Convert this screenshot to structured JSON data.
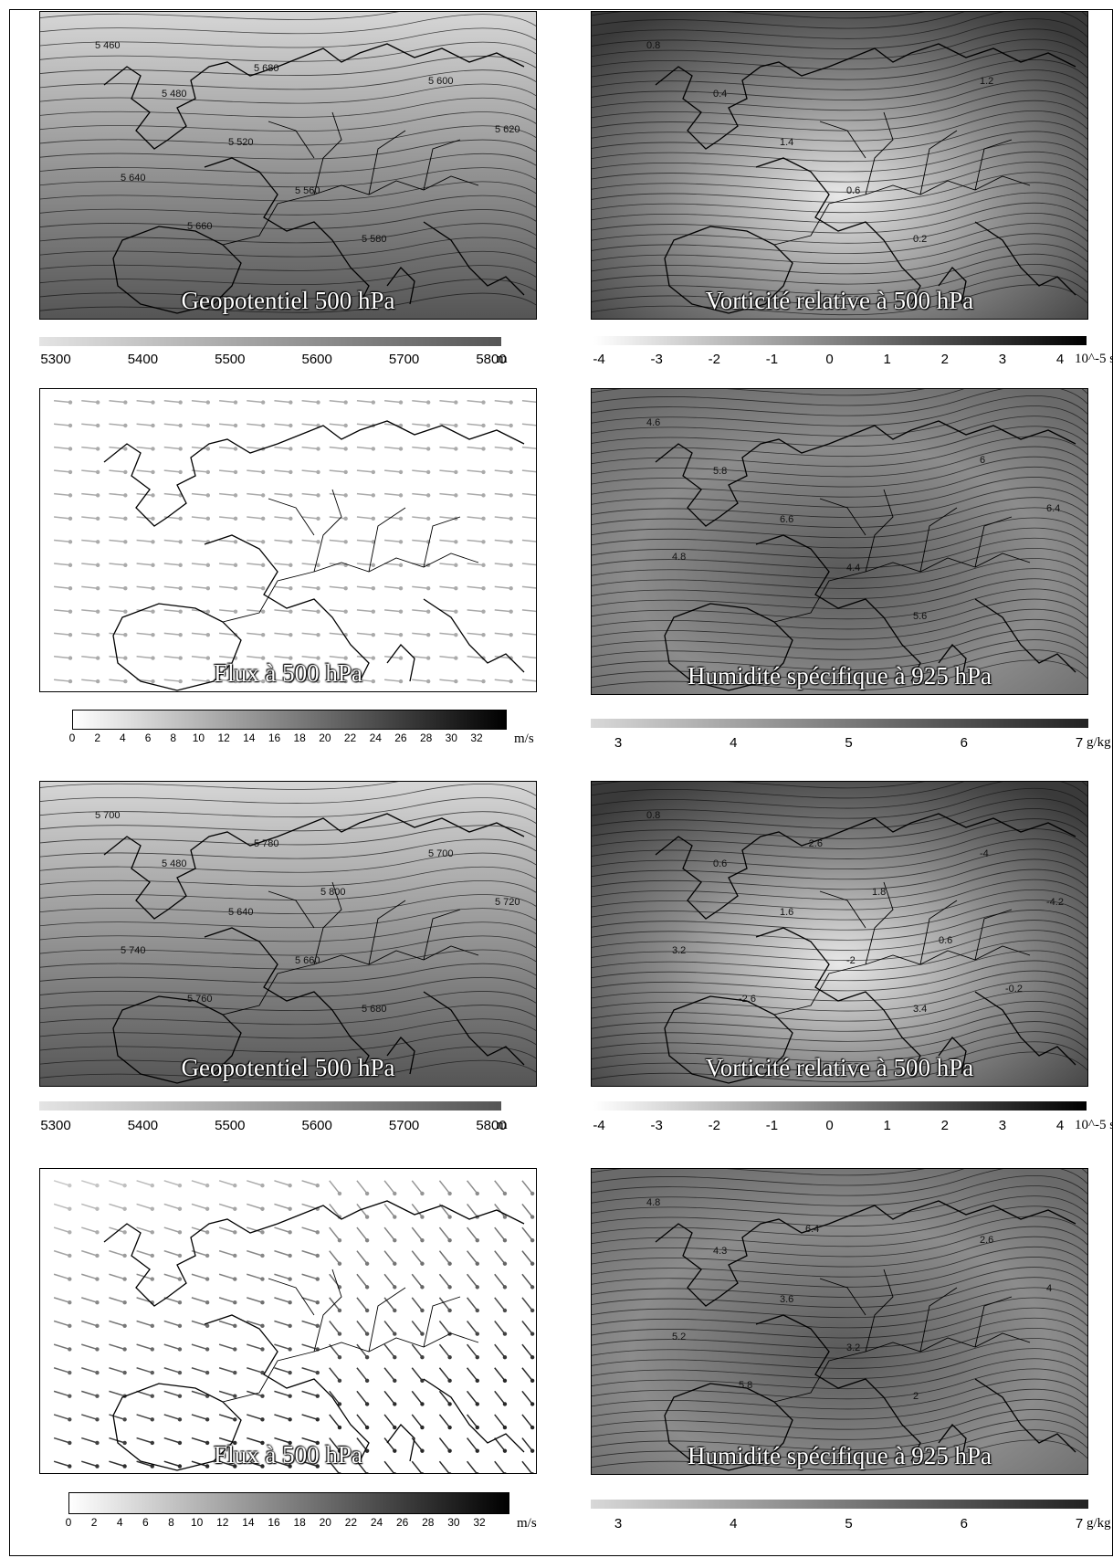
{
  "panels": [
    {
      "id": "p1",
      "title": "Geopotentiel 500 hPa",
      "kind": "geopot"
    },
    {
      "id": "p2",
      "title": "Vorticité relative à 500 hPa",
      "kind": "vort"
    },
    {
      "id": "p3",
      "title": "Flux à 500 hPa",
      "kind": "flux"
    },
    {
      "id": "p4",
      "title": "Humidité spécifique à 925 hPa",
      "kind": "humid"
    },
    {
      "id": "p5",
      "title": "Geopotentiel 500 hPa",
      "kind": "geopot"
    },
    {
      "id": "p6",
      "title": "Vorticité relative à 500 hPa",
      "kind": "vort"
    },
    {
      "id": "p7",
      "title": "Flux à 500 hPa",
      "kind": "flux"
    },
    {
      "id": "p8",
      "title": "Humidité spécifique à 925 hPa",
      "kind": "humid"
    }
  ],
  "contour_labels": {
    "p1": [
      "5 460",
      "5 480",
      "5 520",
      "5 560",
      "5 580",
      "5 600",
      "5 620",
      "5 640",
      "5 660",
      "5 680"
    ],
    "p2": [
      "0.8",
      "0.4",
      "1.4",
      "0.6",
      "0.2",
      "1.2"
    ],
    "p4": [
      "4.6",
      "5.8",
      "6.6",
      "4.4",
      "5.6",
      "6",
      "6.4",
      "4.8"
    ],
    "p5": [
      "5 700",
      "5 480",
      "5 640",
      "5 660",
      "5 680",
      "5 700",
      "5 720",
      "5 740",
      "5 760",
      "5 780",
      "5 800"
    ],
    "p6": [
      "0.8",
      "0.6",
      "1.6",
      "-2",
      "3.4",
      "-4",
      "-4.2",
      "3.2",
      "-2.6",
      "-2.6",
      "1.8",
      "0.6",
      "-0.2"
    ],
    "p8": [
      "4.8",
      "4.3",
      "3.6",
      "3.2",
      "2",
      "2.6",
      "4",
      "5.2",
      "5.8",
      "6.4"
    ]
  },
  "legends": {
    "geopot": {
      "ticks": [
        "5300",
        "5400",
        "5500",
        "5600",
        "5700",
        "5800"
      ],
      "unit": "m"
    },
    "vort": {
      "ticks": [
        "-4",
        "-3",
        "-2",
        "-1",
        "0",
        "1",
        "2",
        "3",
        "4"
      ],
      "unit": "10^-5 s"
    },
    "flux": {
      "ticks": [
        "0",
        "2",
        "4",
        "6",
        "8",
        "10",
        "12",
        "14",
        "16",
        "18",
        "20",
        "22",
        "24",
        "26",
        "28",
        "30",
        "32"
      ],
      "unit": "m/s"
    },
    "humid": {
      "ticks": [
        "3",
        "4",
        "5",
        "6",
        "7"
      ],
      "unit": "g/kg"
    }
  }
}
